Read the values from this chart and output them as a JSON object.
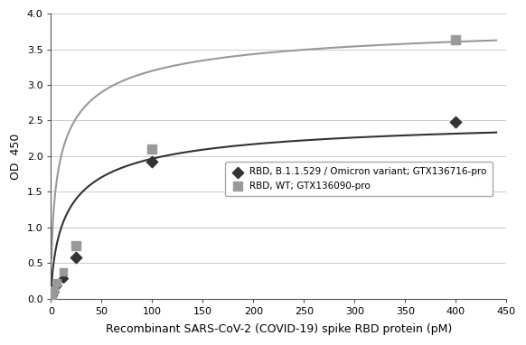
{
  "omicron_x": [
    1.6,
    3.1,
    6.25,
    12.5,
    25,
    100,
    400
  ],
  "omicron_y": [
    0.05,
    0.1,
    0.18,
    0.28,
    0.58,
    1.92,
    2.48
  ],
  "wt_x": [
    1.6,
    3.1,
    6.25,
    12.5,
    25,
    100,
    400
  ],
  "wt_y": [
    0.05,
    0.12,
    0.22,
    0.38,
    0.74,
    2.1,
    3.63
  ],
  "omicron_color": "#333333",
  "wt_color": "#999999",
  "omicron_label": "RBD, B.1.1.529 / Omicron variant; GTX136716-pro",
  "wt_label": "RBD, WT; GTX136090-pro",
  "xlabel": "Recombinant SARS-CoV-2 (COVID-19) spike RBD protein (pM)",
  "ylabel": "OD  450",
  "xlim": [
    0,
    440
  ],
  "ylim": [
    0,
    4
  ],
  "xticks": [
    0,
    50,
    100,
    150,
    200,
    250,
    300,
    350,
    400,
    450
  ],
  "yticks": [
    0,
    0.5,
    1.0,
    1.5,
    2.0,
    2.5,
    3.0,
    3.5,
    4.0
  ],
  "background_color": "#ffffff",
  "grid_color": "#cccccc"
}
